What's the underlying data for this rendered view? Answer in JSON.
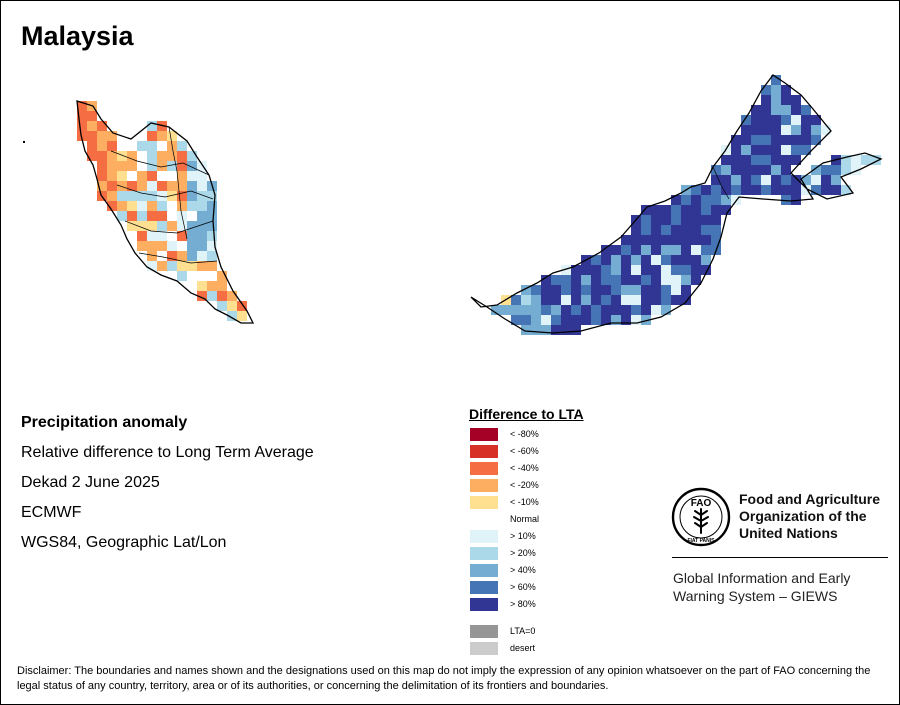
{
  "title": "Malaysia",
  "metadata": {
    "heading": "Precipitation anomaly",
    "subtitle": "Relative difference to Long Term Average",
    "period": "Dekad 2 June 2025",
    "source": "ECMWF",
    "projection": "WGS84, Geographic Lat/Lon"
  },
  "legend": {
    "title": "Difference to LTA",
    "dry": [
      {
        "label": "< -80%",
        "color": "#a50026"
      },
      {
        "label": "< -60%",
        "color": "#d73027"
      },
      {
        "label": "< -40%",
        "color": "#f46d43"
      },
      {
        "label": "< -20%",
        "color": "#fdae61"
      },
      {
        "label": "< -10%",
        "color": "#fee090"
      }
    ],
    "normal": "Normal",
    "wet": [
      {
        "label": "> 10%",
        "color": "#e0f3f8"
      },
      {
        "label": "> 20%",
        "color": "#abd9e9"
      },
      {
        "label": "> 40%",
        "color": "#74add1"
      },
      {
        "label": "> 60%",
        "color": "#4575b4"
      },
      {
        "label": "> 80%",
        "color": "#313695"
      }
    ],
    "other": [
      {
        "label": "LTA=0",
        "color": "#969696"
      },
      {
        "label": "desert",
        "color": "#cccccc"
      }
    ]
  },
  "organization": {
    "line1": "Food and Agriculture",
    "line2": "Organization of the",
    "line3": "United Nations",
    "logo_text": "FAO",
    "logo_motto": "FIAT PANIS"
  },
  "system": {
    "line1": "Global Information and Early",
    "line2": "Warning System – GIEWS"
  },
  "disclaimer": "Disclaimer: The boundaries and names shown and the designations used on this map do not imply the expression of any opinion whatsoever on the part of FAO concerning the legal status of any country, territory, area or of its authorities, or concerning the delimitation of its frontiers and boundaries."
}
